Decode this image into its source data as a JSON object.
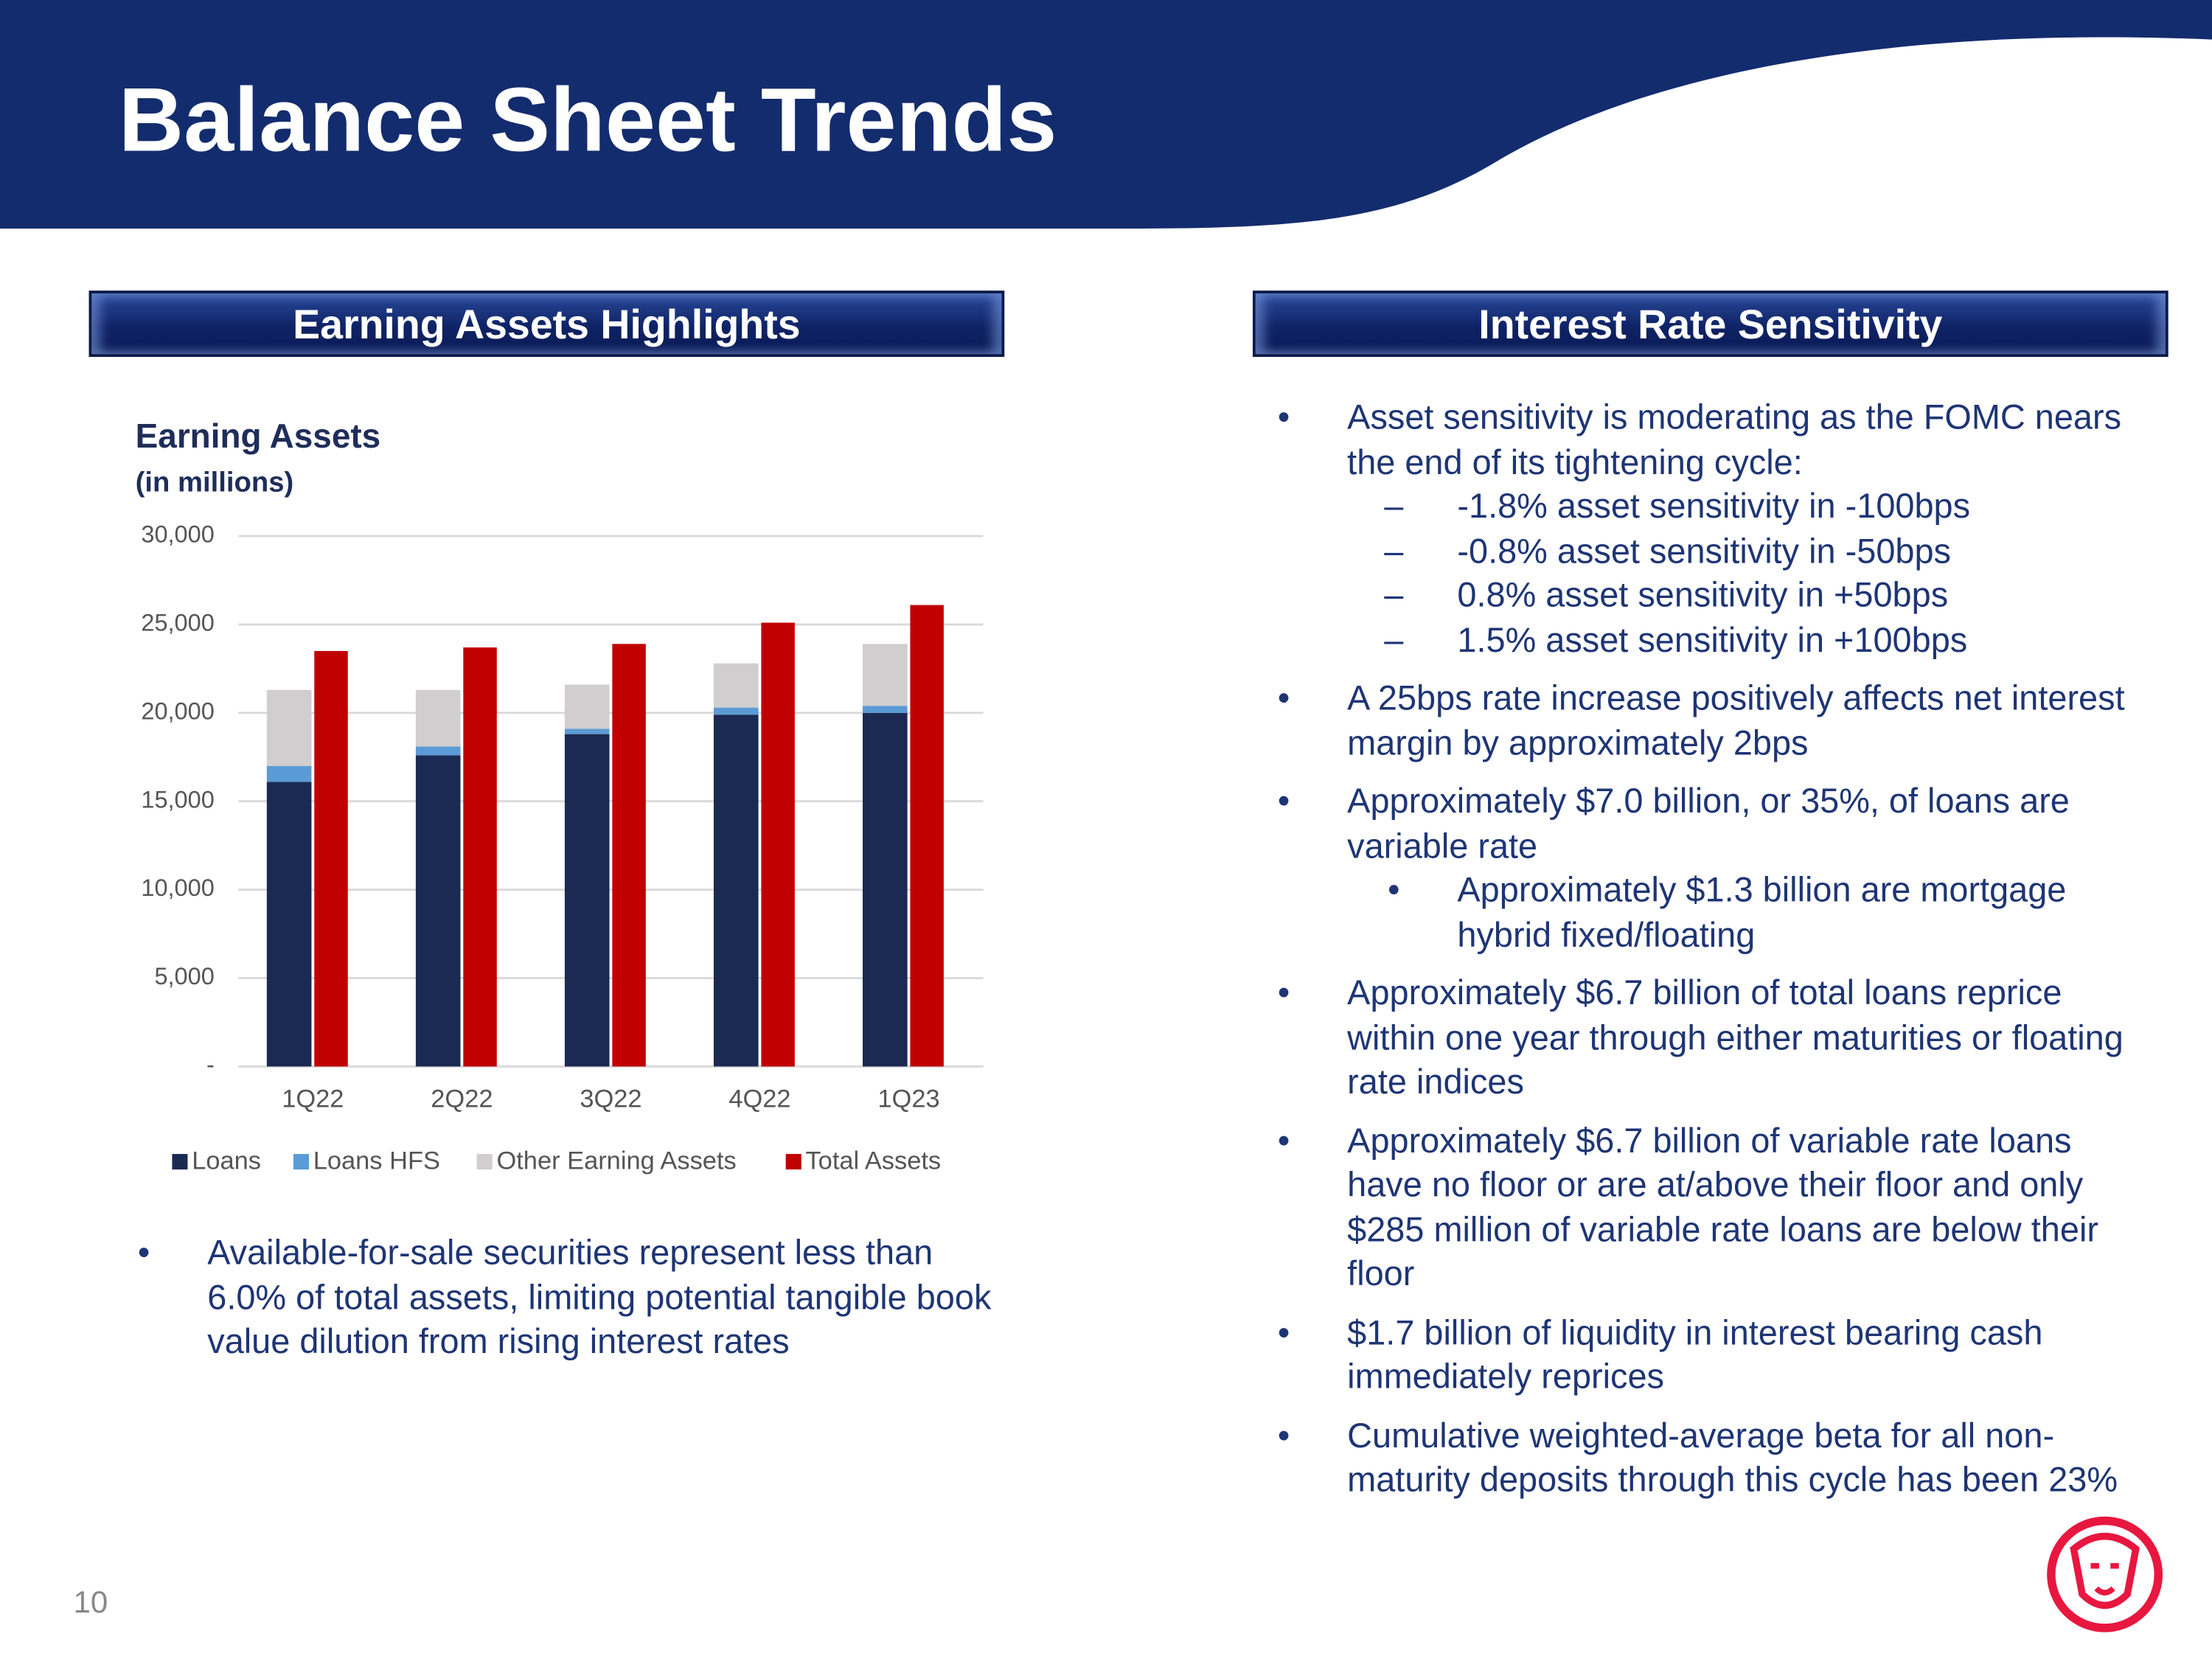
{
  "header": {
    "title": "Balance Sheet Trends"
  },
  "left": {
    "heading": "Earning Assets Highlights",
    "bullets": [
      "Available-for-sale securities represent less than 6.0% of total assets, limiting potential tangible book value dilution from rising interest rates"
    ]
  },
  "chart_data": {
    "type": "bar",
    "title": "Earning Assets",
    "subtitle": "(in millions)",
    "categories": [
      "1Q22",
      "2Q22",
      "3Q22",
      "4Q22",
      "1Q23"
    ],
    "series": [
      {
        "name": "Loans",
        "color": "#1b2a52",
        "stacked": true,
        "values": [
          16100,
          17600,
          18800,
          19900,
          20000
        ]
      },
      {
        "name": "Loans HFS",
        "color": "#5b9bd5",
        "stacked": true,
        "values": [
          900,
          500,
          300,
          400,
          400
        ]
      },
      {
        "name": "Other Earning Assets",
        "color": "#d0cece",
        "stacked": true,
        "values": [
          4300,
          3200,
          2500,
          2500,
          3500
        ]
      },
      {
        "name": "Total Assets",
        "color": "#c00000",
        "stacked": false,
        "values": [
          23500,
          23700,
          23900,
          25100,
          26100
        ]
      }
    ],
    "ylim": [
      0,
      30000
    ],
    "yticks": [
      {
        "value": 0,
        "label": "-"
      },
      {
        "value": 5000,
        "label": "5,000"
      },
      {
        "value": 10000,
        "label": "10,000"
      },
      {
        "value": 15000,
        "label": "15,000"
      },
      {
        "value": 20000,
        "label": "20,000"
      },
      {
        "value": 25000,
        "label": "25,000"
      },
      {
        "value": 30000,
        "label": "30,000"
      }
    ],
    "grid": true,
    "legend": "bottom"
  },
  "right": {
    "heading": "Interest Rate Sensitivity",
    "bullets": [
      {
        "text": "Asset sensitivity is moderating as the FOMC nears the end of its tightening cycle:",
        "dashes": [
          "-1.8% asset sensitivity in -100bps",
          "-0.8% asset sensitivity in -50bps",
          "0.8% asset sensitivity in +50bps",
          "1.5% asset sensitivity in +100bps"
        ]
      },
      {
        "text": "A 25bps rate increase positively affects net interest margin by approximately 2bps"
      },
      {
        "text": "Approximately $7.0 billion, or 35%, of loans are variable rate",
        "subbullets": [
          "Approximately $1.3 billion are mortgage hybrid fixed/floating"
        ]
      },
      {
        "text": "Approximately $6.7 billion of total loans reprice within one year through either maturities or floating rate indices"
      },
      {
        "text": "Approximately $6.7 billion of variable rate loans have no floor or are at/above their floor and only $285 million of variable rate loans are below their floor"
      },
      {
        "text": "$1.7 billion of liquidity in interest bearing cash immediately reprices"
      },
      {
        "text": "Cumulative weighted-average beta for all non-maturity deposits through this cycle has been 23%"
      }
    ]
  },
  "page_number": "10"
}
